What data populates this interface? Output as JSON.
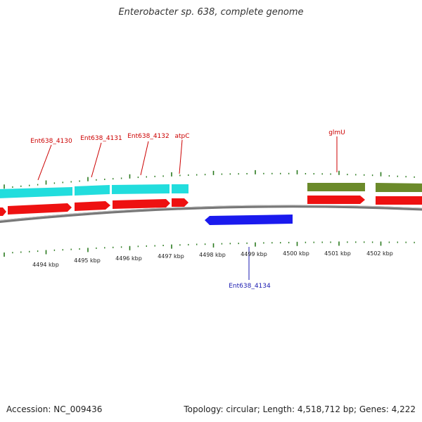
{
  "title": "Enterobacter sp. 638, complete genome",
  "footer": {
    "accession": "Accession: NC_009436",
    "stats": "Topology: circular; Length: 4,518,712 bp; Genes: 4,222"
  },
  "colors": {
    "backbone": "#888888",
    "tick": "#2a7a1e",
    "plus_cds": "#ee1111",
    "plus_gene_cyan": "#22dddd",
    "plus_gene_olive": "#6b8a2a",
    "minus_cds": "#1a1aee",
    "label_plus": "#cc0000",
    "label_minus": "#1a1ab0"
  },
  "scale_labels": [
    "4494 kbp",
    "4495 kbp",
    "4496 kbp",
    "4497 kbp",
    "4498 kbp",
    "4499 kbp",
    "4500 kbp",
    "4501 kbp",
    "4502 kbp"
  ],
  "gene_labels": [
    {
      "text": "Ent638_4130",
      "strand": "plus"
    },
    {
      "text": "Ent638_4131",
      "strand": "plus"
    },
    {
      "text": "Ent638_4132",
      "strand": "plus"
    },
    {
      "text": "atpC",
      "strand": "plus"
    },
    {
      "text": "glmU",
      "strand": "plus"
    },
    {
      "text": "Ent638_4134",
      "strand": "minus"
    }
  ]
}
